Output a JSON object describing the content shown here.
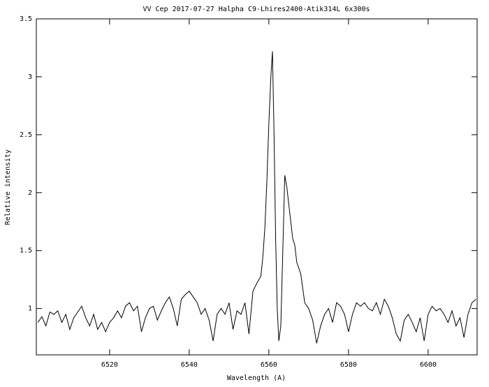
{
  "chart_data": {
    "type": "line",
    "title": "VV Cep 2017-07-27 Halpha C9-Lhires2400-Atik314L 6x300s",
    "xlabel": "Wavelength (A)",
    "ylabel": "Relative intensity",
    "color": "#000000",
    "xlim": [
      6501.6,
      6612.3
    ],
    "ylim": [
      0.6,
      3.5
    ],
    "xticks": [
      6520,
      6540,
      6560,
      6580,
      6600
    ],
    "yticks": [
      1,
      1.5,
      2,
      2.5,
      3,
      3.5
    ],
    "grid": false,
    "x": [
      6502,
      6503,
      6504,
      6505,
      6506,
      6507,
      6508,
      6509,
      6510,
      6511,
      6512,
      6513,
      6514,
      6515,
      6516,
      6517,
      6518,
      6519,
      6520,
      6521,
      6522,
      6523,
      6524,
      6525,
      6526,
      6527,
      6528,
      6529,
      6530,
      6531,
      6532,
      6533,
      6534,
      6535,
      6536,
      6537,
      6538,
      6539,
      6540,
      6541,
      6542,
      6543,
      6544,
      6545,
      6546,
      6547,
      6548,
      6549,
      6550,
      6551,
      6552,
      6553,
      6554,
      6555,
      6556,
      6557,
      6558,
      6558.5,
      6559,
      6559.5,
      6560,
      6560.5,
      6560.9,
      6561.3,
      6561.7,
      6562.1,
      6562.5,
      6563,
      6563.5,
      6564,
      6564.5,
      6565,
      6565.5,
      6566,
      6566.5,
      6567,
      6568,
      6569,
      6570,
      6571,
      6572,
      6573,
      6574,
      6575,
      6576,
      6577,
      6578,
      6579,
      6580,
      6581,
      6582,
      6583,
      6584,
      6585,
      6586,
      6587,
      6588,
      6589,
      6590,
      6591,
      6592,
      6593,
      6594,
      6595,
      6596,
      6597,
      6598,
      6599,
      6600,
      6601,
      6602,
      6603,
      6604,
      6605,
      6606,
      6607,
      6608,
      6609,
      6610,
      6611,
      6612
    ],
    "values": [
      0.88,
      0.93,
      0.85,
      0.97,
      0.95,
      0.98,
      0.88,
      0.95,
      0.82,
      0.92,
      0.97,
      1.02,
      0.92,
      0.85,
      0.95,
      0.82,
      0.88,
      0.8,
      0.88,
      0.92,
      0.98,
      0.92,
      1.02,
      1.05,
      0.98,
      1.02,
      0.8,
      0.92,
      1.0,
      1.02,
      0.9,
      0.98,
      1.05,
      1.1,
      1.0,
      0.85,
      1.08,
      1.12,
      1.15,
      1.1,
      1.05,
      0.95,
      1.0,
      0.9,
      0.72,
      0.95,
      1.0,
      0.95,
      1.05,
      0.82,
      0.98,
      0.95,
      1.05,
      0.78,
      1.15,
      1.22,
      1.28,
      1.45,
      1.7,
      2.1,
      2.6,
      3.0,
      3.22,
      2.5,
      1.6,
      1.0,
      0.72,
      0.85,
      1.5,
      2.15,
      2.05,
      1.9,
      1.75,
      1.6,
      1.55,
      1.4,
      1.3,
      1.05,
      1.0,
      0.9,
      0.7,
      0.85,
      0.95,
      1.0,
      0.88,
      1.05,
      1.02,
      0.95,
      0.8,
      0.95,
      1.05,
      1.02,
      1.05,
      1.0,
      0.98,
      1.05,
      0.95,
      1.08,
      1.02,
      0.92,
      0.78,
      0.72,
      0.9,
      0.95,
      0.88,
      0.8,
      0.92,
      0.72,
      0.95,
      1.02,
      0.98,
      1.0,
      0.95,
      0.88,
      0.98,
      0.85,
      0.92,
      0.75,
      0.95,
      1.05,
      1.08
    ]
  }
}
